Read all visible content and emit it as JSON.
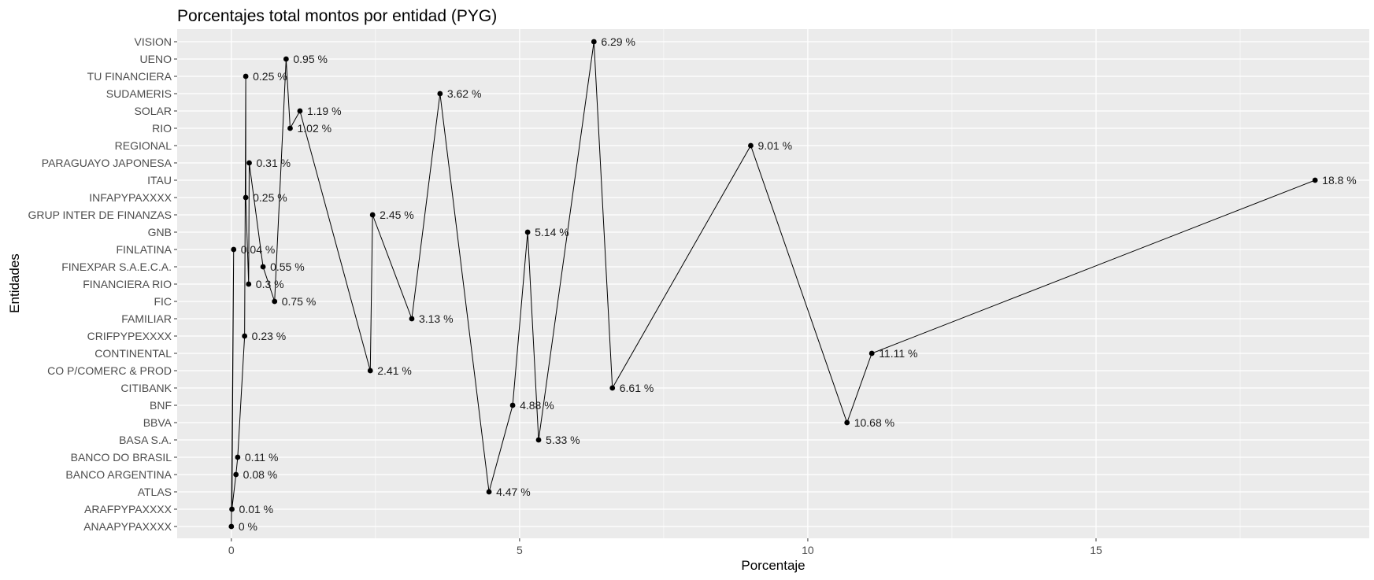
{
  "chart_data": {
    "type": "line",
    "title": "Porcentajes total montos por entidad (PYG)",
    "xlabel": "Porcentaje",
    "ylabel": "Entidades",
    "xlim": [
      -0.94,
      19.74
    ],
    "x_ticks": [
      0,
      5,
      10,
      15
    ],
    "grid": true,
    "categories": [
      "ANAAPYPAXXXX",
      "ARAFPYPAXXXX",
      "ATLAS",
      "BANCO ARGENTINA",
      "BANCO DO BRASIL",
      "BASA S.A.",
      "BBVA",
      "BNF",
      "CITIBANK",
      "CO P/COMERC & PROD",
      "CONTINENTAL",
      "CRIFPYPEXXXX",
      "FAMILIAR",
      "FIC",
      "FINANCIERA RIO",
      "FINEXPAR S.A.E.C.A.",
      "FINLATINA",
      "GNB",
      "GRUP INTER DE FINANZAS",
      "INFAPYPAXXXX",
      "ITAU",
      "PARAGUAYO JAPONESA",
      "REGIONAL",
      "RIO",
      "SOLAR",
      "SUDAMERIS",
      "TU FINANCIERA",
      "UENO",
      "VISION"
    ],
    "points": [
      {
        "entity": "ANAAPYPAXXXX",
        "x": 0.0,
        "label": "0 %"
      },
      {
        "entity": "FINLATINA",
        "x": 0.04,
        "label": "0.04 %"
      },
      {
        "entity": "ARAFPYPAXXXX",
        "x": 0.01,
        "label": "0.01 %"
      },
      {
        "entity": "BANCO ARGENTINA",
        "x": 0.08,
        "label": "0.08 %"
      },
      {
        "entity": "BANCO DO BRASIL",
        "x": 0.11,
        "label": "0.11 %"
      },
      {
        "entity": "CRIFPYPEXXXX",
        "x": 0.23,
        "label": "0.23 %"
      },
      {
        "entity": "TU FINANCIERA",
        "x": 0.25,
        "label": "0.25 %"
      },
      {
        "entity": "INFAPYPAXXXX",
        "x": 0.25,
        "label": "0.25 %"
      },
      {
        "entity": "FINANCIERA RIO",
        "x": 0.3,
        "label": "0.3 %"
      },
      {
        "entity": "PARAGUAYO JAPONESA",
        "x": 0.31,
        "label": "0.31 %"
      },
      {
        "entity": "FINEXPAR S.A.E.C.A.",
        "x": 0.55,
        "label": "0.55 %"
      },
      {
        "entity": "FIC",
        "x": 0.75,
        "label": "0.75 %"
      },
      {
        "entity": "UENO",
        "x": 0.95,
        "label": "0.95 %"
      },
      {
        "entity": "RIO",
        "x": 1.02,
        "label": "1.02 %"
      },
      {
        "entity": "SOLAR",
        "x": 1.19,
        "label": "1.19 %"
      },
      {
        "entity": "CO P/COMERC & PROD",
        "x": 2.41,
        "label": "2.41 %"
      },
      {
        "entity": "GRUP INTER DE FINANZAS",
        "x": 2.45,
        "label": "2.45 %"
      },
      {
        "entity": "FAMILIAR",
        "x": 3.13,
        "label": "3.13 %"
      },
      {
        "entity": "SUDAMERIS",
        "x": 3.62,
        "label": "3.62 %"
      },
      {
        "entity": "ATLAS",
        "x": 4.47,
        "label": "4.47 %"
      },
      {
        "entity": "BNF",
        "x": 4.88,
        "label": "4.88 %"
      },
      {
        "entity": "GNB",
        "x": 5.14,
        "label": "5.14 %"
      },
      {
        "entity": "BASA S.A.",
        "x": 5.33,
        "label": "5.33 %"
      },
      {
        "entity": "VISION",
        "x": 6.29,
        "label": "6.29 %"
      },
      {
        "entity": "CITIBANK",
        "x": 6.61,
        "label": "6.61 %"
      },
      {
        "entity": "REGIONAL",
        "x": 9.01,
        "label": "9.01 %"
      },
      {
        "entity": "BBVA",
        "x": 10.68,
        "label": "10.68 %"
      },
      {
        "entity": "CONTINENTAL",
        "x": 11.11,
        "label": "11.11 %"
      },
      {
        "entity": "ITAU",
        "x": 18.8,
        "label": "18.8 %"
      }
    ],
    "colors": {
      "panel": "#ebebeb",
      "grid": "#ffffff",
      "line": "#000000",
      "point": "#000000"
    }
  }
}
